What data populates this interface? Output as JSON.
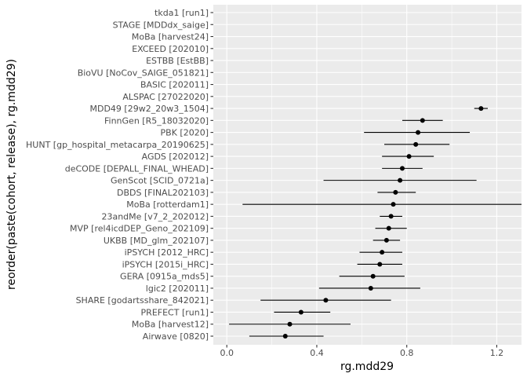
{
  "chart_data": {
    "type": "scatter",
    "subtype": "point-range",
    "xlabel": "rg.mdd29",
    "ylabel": "reorder(paste(cohort, release), rg.mdd29)",
    "xlim": [
      -0.06,
      1.31
    ],
    "x_ticks": [
      0.0,
      0.4,
      0.8,
      1.2
    ],
    "x_tick_labels": [
      "0.0",
      "0.4",
      "0.8",
      "1.2"
    ],
    "grid": true,
    "background": "#ebebeb",
    "point_color": "#000000",
    "categories": [
      "tkda1 [run1]",
      "STAGE [MDDdx_saige]",
      "MoBa [harvest24]",
      "EXCEED [202010]",
      "ESTBB [EstBB]",
      "BioVU [NoCov_SAIGE_051821]",
      "BASIC [202011]",
      "ALSPAC [27022020]",
      "MDD49 [29w2_20w3_1504]",
      "FinnGen [R5_18032020]",
      "PBK [2020]",
      "HUNT [gp_hospital_metacarpa_20190625]",
      "AGDS [202012]",
      "deCODE [DEPALL_FINAL_WHEAD]",
      "GenScot [SCID_0721a]",
      "DBDS [FINAL202103]",
      "MoBa [rotterdam1]",
      "23andMe [v7_2_202012]",
      "MVP [rel4icdDEP_Geno_202109]",
      "UKBB [MD_glm_202107]",
      "iPSYCH [2012_HRC]",
      "iPSYCH [2015i_HRC]",
      "GERA [0915a_mds5]",
      "lgic2 [202011]",
      "SHARE [godartsshare_842021]",
      "PREFECT [run1]",
      "MoBa [harvest12]",
      "Airwave [0820]"
    ],
    "points": [
      {
        "y": null,
        "lo": null,
        "hi": null
      },
      {
        "y": null,
        "lo": null,
        "hi": null
      },
      {
        "y": null,
        "lo": null,
        "hi": null
      },
      {
        "y": null,
        "lo": null,
        "hi": null
      },
      {
        "y": null,
        "lo": null,
        "hi": null
      },
      {
        "y": null,
        "lo": null,
        "hi": null
      },
      {
        "y": null,
        "lo": null,
        "hi": null
      },
      {
        "y": null,
        "lo": null,
        "hi": null
      },
      {
        "y": 1.13,
        "lo": 1.1,
        "hi": 1.16
      },
      {
        "y": 0.87,
        "lo": 0.78,
        "hi": 0.96
      },
      {
        "y": 0.85,
        "lo": 0.61,
        "hi": 1.08
      },
      {
        "y": 0.84,
        "lo": 0.7,
        "hi": 0.99
      },
      {
        "y": 0.81,
        "lo": 0.69,
        "hi": 0.92
      },
      {
        "y": 0.78,
        "lo": 0.69,
        "hi": 0.87
      },
      {
        "y": 0.77,
        "lo": 0.43,
        "hi": 1.11
      },
      {
        "y": 0.75,
        "lo": 0.67,
        "hi": 0.84
      },
      {
        "y": 0.74,
        "lo": 0.07,
        "hi": 1.31
      },
      {
        "y": 0.73,
        "lo": 0.68,
        "hi": 0.78
      },
      {
        "y": 0.72,
        "lo": 0.66,
        "hi": 0.8
      },
      {
        "y": 0.71,
        "lo": 0.65,
        "hi": 0.77
      },
      {
        "y": 0.69,
        "lo": 0.59,
        "hi": 0.78
      },
      {
        "y": 0.68,
        "lo": 0.58,
        "hi": 0.78
      },
      {
        "y": 0.65,
        "lo": 0.5,
        "hi": 0.79
      },
      {
        "y": 0.64,
        "lo": 0.41,
        "hi": 0.86
      },
      {
        "y": 0.44,
        "lo": 0.15,
        "hi": 0.73
      },
      {
        "y": 0.33,
        "lo": 0.21,
        "hi": 0.46
      },
      {
        "y": 0.28,
        "lo": 0.01,
        "hi": 0.55
      },
      {
        "y": 0.26,
        "lo": 0.1,
        "hi": 0.43
      }
    ]
  }
}
